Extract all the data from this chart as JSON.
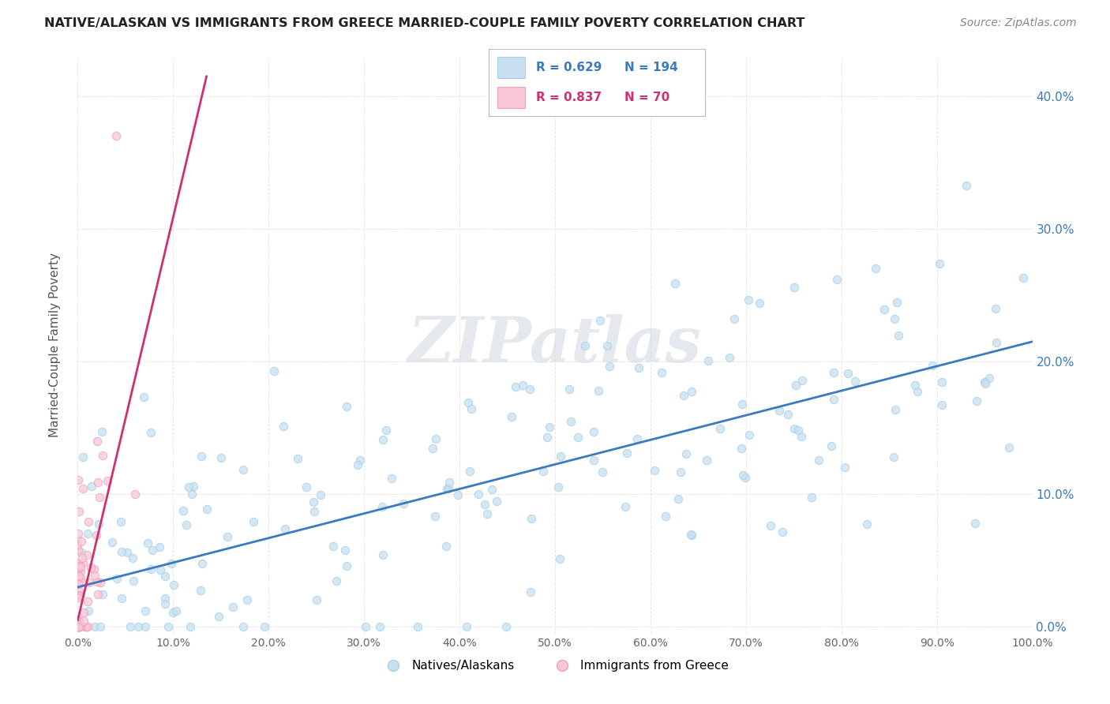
{
  "title": "NATIVE/ALASKAN VS IMMIGRANTS FROM GREECE MARRIED-COUPLE FAMILY POVERTY CORRELATION CHART",
  "source": "Source: ZipAtlas.com",
  "ylabel": "Married-Couple Family Poverty",
  "xmin": 0.0,
  "xmax": 1.0,
  "ymin": -0.005,
  "ymax": 0.43,
  "xticks": [
    0.0,
    0.1,
    0.2,
    0.3,
    0.4,
    0.5,
    0.6,
    0.7,
    0.8,
    0.9,
    1.0
  ],
  "yticks": [
    0.0,
    0.1,
    0.2,
    0.3,
    0.4
  ],
  "xtick_labels": [
    "0.0%",
    "10.0%",
    "20.0%",
    "30.0%",
    "40.0%",
    "50.0%",
    "60.0%",
    "70.0%",
    "80.0%",
    "90.0%",
    "100.0%"
  ],
  "ytick_labels_right": [
    "0.0%",
    "10.0%",
    "20.0%",
    "30.0%",
    "40.0%"
  ],
  "native_color": "#a8cfe8",
  "native_face_color": "#c8e0f0",
  "greece_color": "#f0a0b8",
  "greece_face_color": "#f8c8d8",
  "native_line_color": "#3a7abf",
  "greece_line_color": "#d03070",
  "native_R": 0.629,
  "native_N": 194,
  "greece_R": 0.837,
  "greece_N": 70,
  "watermark": "ZIPatlas",
  "legend_label_native": "Natives/Alaskans",
  "legend_label_greece": "Immigrants from Greece",
  "background_color": "#ffffff",
  "grid_color": "#e8e8e8",
  "native_line_x0": 0.0,
  "native_line_y0": 0.03,
  "native_line_x1": 1.0,
  "native_line_y1": 0.215,
  "greece_line_x0": 0.0,
  "greece_line_y0": 0.005,
  "greece_line_x1": 0.135,
  "greece_line_y1": 0.415
}
